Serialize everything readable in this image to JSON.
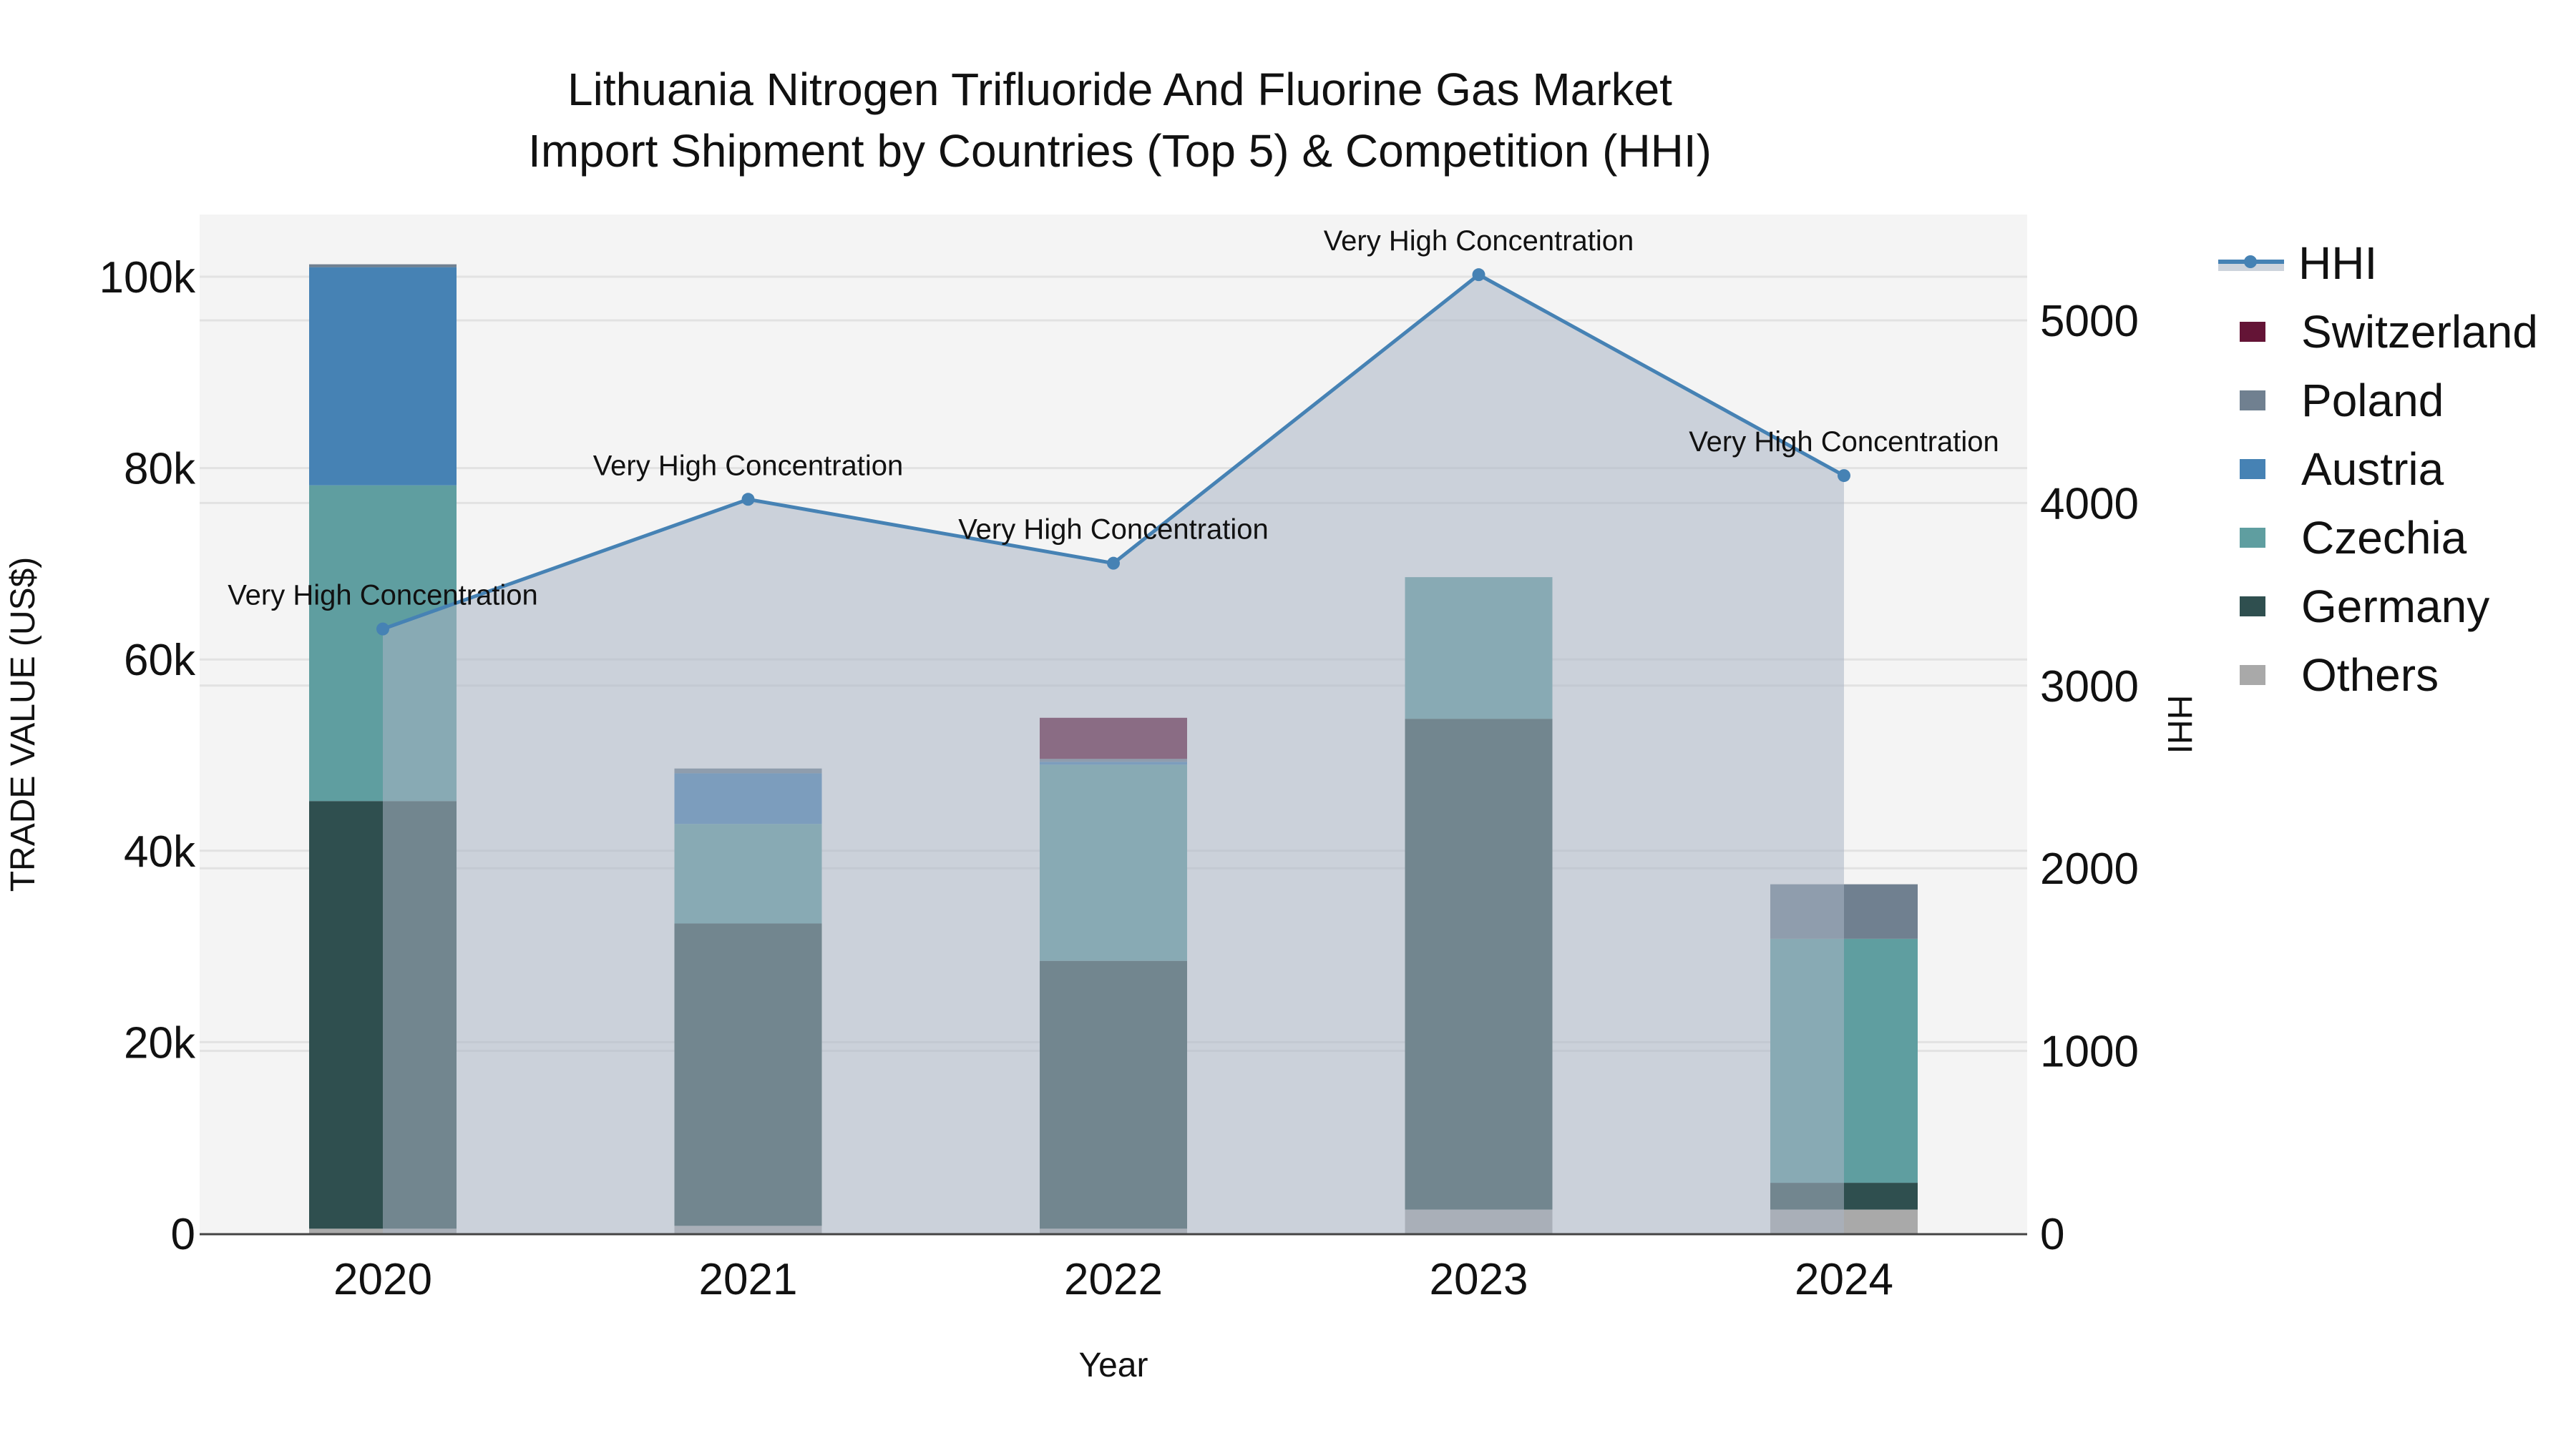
{
  "title": {
    "line1": "Lithuania Nitrogen Trifluoride And Fluorine Gas Market",
    "line2": "Import Shipment by Countries (Top 5) & Competition (HHI)"
  },
  "axes": {
    "x_label": "Year",
    "y_left_label": "TRADE VALUE (US$)",
    "y_right_label": "HHI",
    "x_ticks": [
      "2020",
      "2021",
      "2022",
      "2023",
      "2024"
    ],
    "y_left_ticks": [
      "0",
      "20k",
      "40k",
      "60k",
      "80k",
      "100k"
    ],
    "y_right_ticks": [
      "0",
      "1000",
      "2000",
      "3000",
      "4000",
      "5000"
    ]
  },
  "legend": [
    {
      "label": "HHI",
      "type": "line",
      "color": "#4682b4"
    },
    {
      "label": "Switzerland",
      "type": "bar",
      "color": "#641436"
    },
    {
      "label": "Poland",
      "type": "bar",
      "color": "#708090"
    },
    {
      "label": "Austria",
      "type": "bar",
      "color": "#4682b4"
    },
    {
      "label": "Czechia",
      "type": "bar",
      "color": "#5f9ea0"
    },
    {
      "label": "Germany",
      "type": "bar",
      "color": "#2f4f4f"
    },
    {
      "label": "Others",
      "type": "bar",
      "color": "#a9a9a9"
    }
  ],
  "annotation_text": "Very High Concentration",
  "chart_data": {
    "type": "bar",
    "title": "Lithuania Nitrogen Trifluoride And Fluorine Gas Market Import Shipment by Countries (Top 5) & Competition (HHI)",
    "xlabel": "Year",
    "ylabel": "TRADE VALUE (US$)",
    "y2label": "HHI",
    "categories": [
      "2020",
      "2021",
      "2022",
      "2023",
      "2024"
    ],
    "stacked": true,
    "ylim": [
      0,
      106000
    ],
    "y2lim": [
      0,
      5600
    ],
    "series": [
      {
        "name": "Others",
        "color": "#a9a9a9",
        "values": [
          500,
          800,
          500,
          2500,
          2500
        ]
      },
      {
        "name": "Germany",
        "color": "#2f4f4f",
        "values": [
          44700,
          31600,
          28000,
          51300,
          2800
        ]
      },
      {
        "name": "Czechia",
        "color": "#5f9ea0",
        "values": [
          33000,
          10400,
          20500,
          14800,
          25500
        ]
      },
      {
        "name": "Austria",
        "color": "#4682b4",
        "values": [
          22800,
          5300,
          300,
          0,
          0
        ]
      },
      {
        "name": "Poland",
        "color": "#708090",
        "values": [
          300,
          500,
          300,
          0,
          5700
        ]
      },
      {
        "name": "Switzerland",
        "color": "#641436",
        "values": [
          0,
          0,
          4300,
          0,
          0
        ]
      }
    ],
    "line_series": {
      "name": "HHI",
      "axis": "right",
      "color": "#4682b4",
      "fill": "tozeroy",
      "values": [
        3310,
        4020,
        3670,
        5250,
        4150
      ],
      "annotations": [
        "Very High Concentration",
        "Very High Concentration",
        "Very High Concentration",
        "Very High Concentration",
        "Very High Concentration"
      ]
    },
    "legend_position": "right",
    "grid": true
  }
}
